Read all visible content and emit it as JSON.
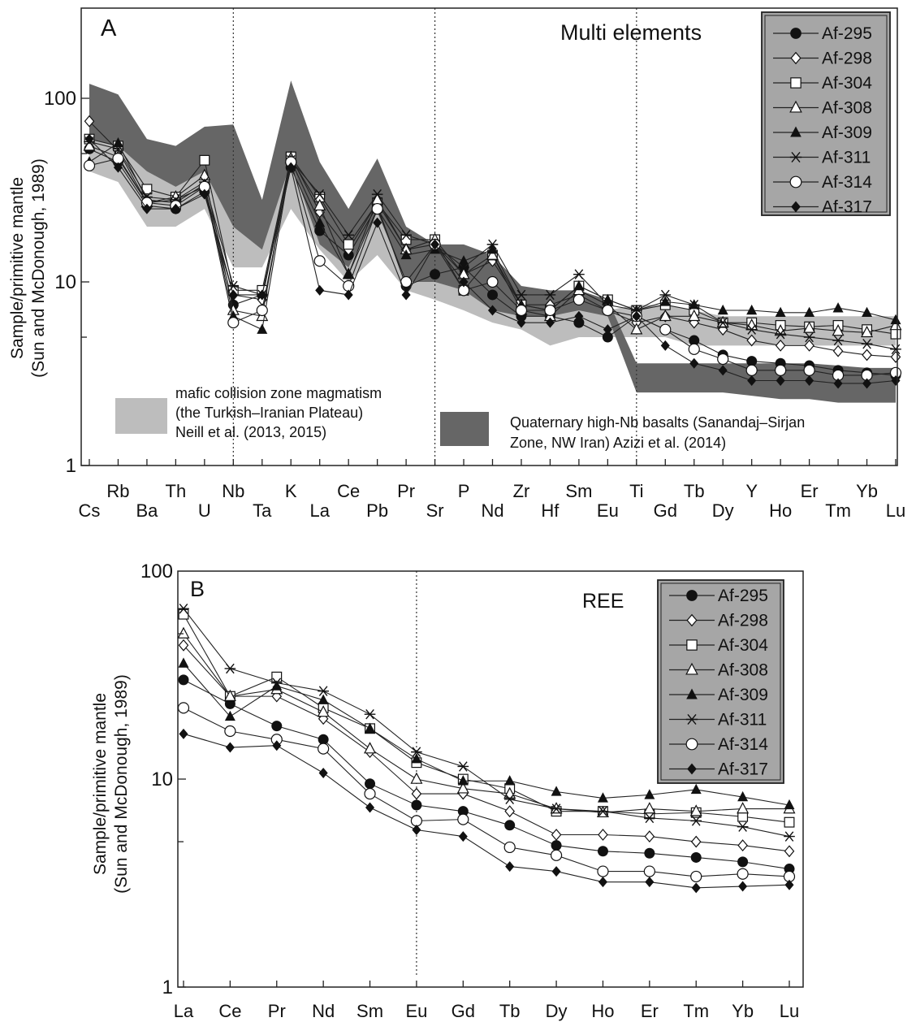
{
  "chart_data": [
    {
      "panel_label": "A",
      "title": "Multi elements",
      "type": "line",
      "y_scale": "log",
      "ylim": [
        1,
        250
      ],
      "ylabel": [
        "Sample/primitive mantle",
        "(Sun and McDonough, 1989)"
      ],
      "y_ticks": [
        {
          "value": 1,
          "label": "1"
        },
        {
          "value": 10,
          "label": "10"
        },
        {
          "value": 100,
          "label": "100"
        }
      ],
      "categories": [
        "Cs",
        "Rb",
        "Ba",
        "Th",
        "U",
        "Nb",
        "Ta",
        "K",
        "La",
        "Ce",
        "Pb",
        "Pr",
        "Sr",
        "P",
        "Nd",
        "Zr",
        "Hf",
        "Sm",
        "Eu",
        "Ti",
        "Gd",
        "Tb",
        "Dy",
        "Y",
        "Ho",
        "Er",
        "Tm",
        "Yb",
        "Lu"
      ],
      "dashed_vertical_lines_at": [
        "Nb",
        "Sr",
        "Ti"
      ],
      "series": [
        {
          "name": "Af-295",
          "marker": "circle-filled",
          "values": [
            53,
            45,
            26,
            25,
            31,
            7.5,
            8.5,
            42,
            19,
            14,
            26,
            9.5,
            11,
            12,
            8.5,
            6.5,
            6.5,
            6,
            5,
            6.5,
            5.5,
            4.8,
            4,
            3.7,
            3.6,
            3.5,
            3.3,
            3.2,
            3.1
          ]
        },
        {
          "name": "Af-298",
          "marker": "diamond-open",
          "values": [
            75,
            52,
            27,
            28,
            33,
            8.5,
            8,
            48,
            24,
            15,
            27,
            15,
            16,
            11,
            13,
            7.5,
            7.5,
            8.5,
            7,
            6,
            6.5,
            6,
            5.5,
            4.8,
            4.5,
            4.5,
            4.2,
            4,
            3.9
          ]
        },
        {
          "name": "Af-304",
          "marker": "square-open",
          "values": [
            60,
            55,
            32,
            29,
            46,
            9,
            9,
            48,
            29,
            16,
            27,
            17,
            17,
            9,
            14,
            7.5,
            7,
            9.5,
            8,
            7,
            7.5,
            7,
            6,
            6,
            5.8,
            5.7,
            5.8,
            5.5,
            5.2
          ]
        },
        {
          "name": "Af-308",
          "marker": "triangle-open",
          "values": [
            55,
            48,
            27,
            29,
            38,
            7,
            6.5,
            47,
            26,
            11,
            28,
            15,
            17,
            11,
            14,
            7,
            6.5,
            9,
            7.5,
            5.5,
            6.5,
            6.5,
            6,
            5.8,
            5.4,
            5.6,
            5.4,
            5.3,
            5.8
          ]
        },
        {
          "name": "Af-309",
          "marker": "triangle-filled",
          "values": [
            45,
            57,
            28,
            27,
            34,
            6.5,
            5.5,
            46,
            21,
            11,
            25,
            14,
            15,
            13,
            15,
            7.5,
            7,
            9.5,
            8,
            7,
            7.8,
            7.5,
            7,
            7,
            6.8,
            6.8,
            7.2,
            6.8,
            6.2
          ]
        },
        {
          "name": "Af-311",
          "marker": "asterisk",
          "values": [
            58,
            53,
            29,
            28,
            35,
            9.5,
            8.5,
            46,
            30,
            18,
            30,
            18,
            16,
            12,
            16,
            8.5,
            8.5,
            11,
            7.5,
            7,
            8.5,
            7.5,
            6,
            5.5,
            5.2,
            5,
            4.8,
            4.6,
            4.3
          ]
        },
        {
          "name": "Af-314",
          "marker": "circle-open",
          "values": [
            43,
            47,
            27,
            26,
            33,
            6,
            7,
            45,
            13,
            9.5,
            25,
            10,
            16,
            9,
            10,
            7,
            7,
            8,
            7,
            6.5,
            5.5,
            4.3,
            3.8,
            3.3,
            3.3,
            3.3,
            3.1,
            3.1,
            3.2
          ]
        },
        {
          "name": "Af-317",
          "marker": "diamond-filled",
          "values": [
            60,
            42,
            25,
            25,
            30,
            8.5,
            8.5,
            42,
            9,
            8.5,
            21,
            8.5,
            16,
            10,
            7,
            6,
            6,
            6.5,
            5.5,
            6.5,
            4.5,
            3.6,
            3.3,
            2.9,
            2.9,
            2.9,
            2.8,
            2.8,
            2.9
          ]
        }
      ],
      "shaded_fields": [
        {
          "name": "mafic collision zone magmatism (the Turkish–Iranian Plateau) Neill et al. (2013, 2015)",
          "color": "#bdbdbd",
          "upper": [
            85,
            75,
            60,
            45,
            45,
            20,
            20,
            60,
            40,
            23,
            35,
            20,
            12,
            11,
            10,
            8,
            7,
            7.5,
            7,
            7.5,
            7.5,
            7,
            6.5,
            6.5,
            6.5,
            6.5,
            6.5,
            6.5,
            6.5
          ],
          "lower": [
            40,
            35,
            20,
            20,
            25,
            12,
            12,
            25,
            15,
            10,
            14,
            9,
            8,
            7,
            6,
            5.5,
            4.5,
            5,
            5,
            5,
            5,
            4.5,
            4.5,
            4.5,
            4.5,
            4.5,
            4.5,
            4.5,
            4.5
          ]
        },
        {
          "name": "Quaternary high-Nb basalts (Sanandaj–Sirjan Zone, NW Iran) Azizi et al. (2014)",
          "color": "#666666",
          "upper": [
            120,
            105,
            60,
            55,
            70,
            72,
            28,
            125,
            45,
            25,
            47,
            20,
            16,
            16,
            14,
            9.5,
            9,
            9,
            8,
            3.6,
            3.6,
            3.6,
            3.6,
            3.6,
            3.6,
            3.6,
            3.5,
            3.4,
            3.4
          ],
          "lower": [
            60,
            55,
            40,
            33,
            40,
            20,
            15,
            45,
            16,
            12,
            24,
            10,
            10,
            9,
            7,
            6.5,
            6.5,
            7,
            6.5,
            2.5,
            2.5,
            2.5,
            2.5,
            2.4,
            2.3,
            2.3,
            2.2,
            2.2,
            2.2
          ]
        }
      ],
      "legend_entries": [
        "Af-295",
        "Af-298",
        "Af-304",
        "Af-308",
        "Af-309",
        "Af-311",
        "Af-314",
        "Af-317"
      ],
      "legend_position": "top-right",
      "legend_background": "#a6a6a6",
      "field_labels": {
        "light": [
          "mafic collision zone magmatism",
          "(the Turkish–Iranian Plateau)",
          "Neill et al. (2013, 2015)"
        ],
        "dark": [
          "Quaternary high-Nb basalts (Sanandaj–Sirjan",
          "Zone, NW Iran) Azizi et al. (2014)"
        ]
      }
    },
    {
      "panel_label": "B",
      "title": "REE",
      "type": "line",
      "y_scale": "log",
      "ylim": [
        1,
        100
      ],
      "ylabel": [
        "Sample/primitive mantle",
        "(Sun and McDonough, 1989)"
      ],
      "y_ticks": [
        {
          "value": 1,
          "label": "1"
        },
        {
          "value": 10,
          "label": "10"
        },
        {
          "value": 100,
          "label": "100"
        }
      ],
      "categories": [
        "La",
        "Ce",
        "Pr",
        "Nd",
        "Sm",
        "Eu",
        "Gd",
        "Tb",
        "Dy",
        "Ho",
        "Er",
        "Tm",
        "Yb",
        "Lu"
      ],
      "dashed_vertical_lines_at": [
        "Eu"
      ],
      "series": [
        {
          "name": "Af-295",
          "marker": "circle-filled",
          "values": [
            30,
            23,
            18,
            15.5,
            9.5,
            7.5,
            7,
            6,
            4.8,
            4.5,
            4.4,
            4.2,
            4,
            3.7
          ]
        },
        {
          "name": "Af-298",
          "marker": "diamond-open",
          "values": [
            44,
            25,
            25,
            19.5,
            13.5,
            8.5,
            8.5,
            7,
            5.4,
            5.4,
            5.3,
            5,
            4.8,
            4.5
          ]
        },
        {
          "name": "Af-304",
          "marker": "square-open",
          "values": [
            62,
            25,
            31,
            22,
            17.5,
            12,
            10,
            9,
            7,
            7,
            6.8,
            6.9,
            6.6,
            6.2
          ]
        },
        {
          "name": "Af-308",
          "marker": "triangle-open",
          "values": [
            50,
            25,
            27,
            21,
            14,
            10,
            9,
            8.5,
            7.2,
            6.9,
            7.2,
            7,
            7.2,
            7.2
          ]
        },
        {
          "name": "Af-309",
          "marker": "triangle-filled",
          "values": [
            36,
            20,
            28,
            24,
            17.5,
            12.5,
            9.8,
            9.8,
            8.7,
            8.1,
            8.4,
            8.9,
            8.2,
            7.5
          ]
        },
        {
          "name": "Af-311",
          "marker": "asterisk",
          "values": [
            66,
            34,
            29,
            26.5,
            20.5,
            13.5,
            11.5,
            8,
            7.2,
            7,
            6.5,
            6.3,
            5.9,
            5.3
          ]
        },
        {
          "name": "Af-314",
          "marker": "circle-open",
          "values": [
            22,
            17,
            15.5,
            14,
            8.5,
            6.3,
            6.4,
            4.7,
            4.3,
            3.6,
            3.6,
            3.4,
            3.5,
            3.4
          ]
        },
        {
          "name": "Af-317",
          "marker": "diamond-filled",
          "values": [
            16.5,
            14.2,
            14.5,
            10.7,
            7.3,
            5.7,
            5.3,
            3.8,
            3.6,
            3.2,
            3.2,
            3,
            3.05,
            3.1
          ]
        }
      ],
      "legend_entries": [
        "Af-295",
        "Af-298",
        "Af-304",
        "Af-308",
        "Af-309",
        "Af-311",
        "Af-314",
        "Af-317"
      ],
      "legend_position": "top-right",
      "legend_background": "#a6a6a6"
    }
  ]
}
